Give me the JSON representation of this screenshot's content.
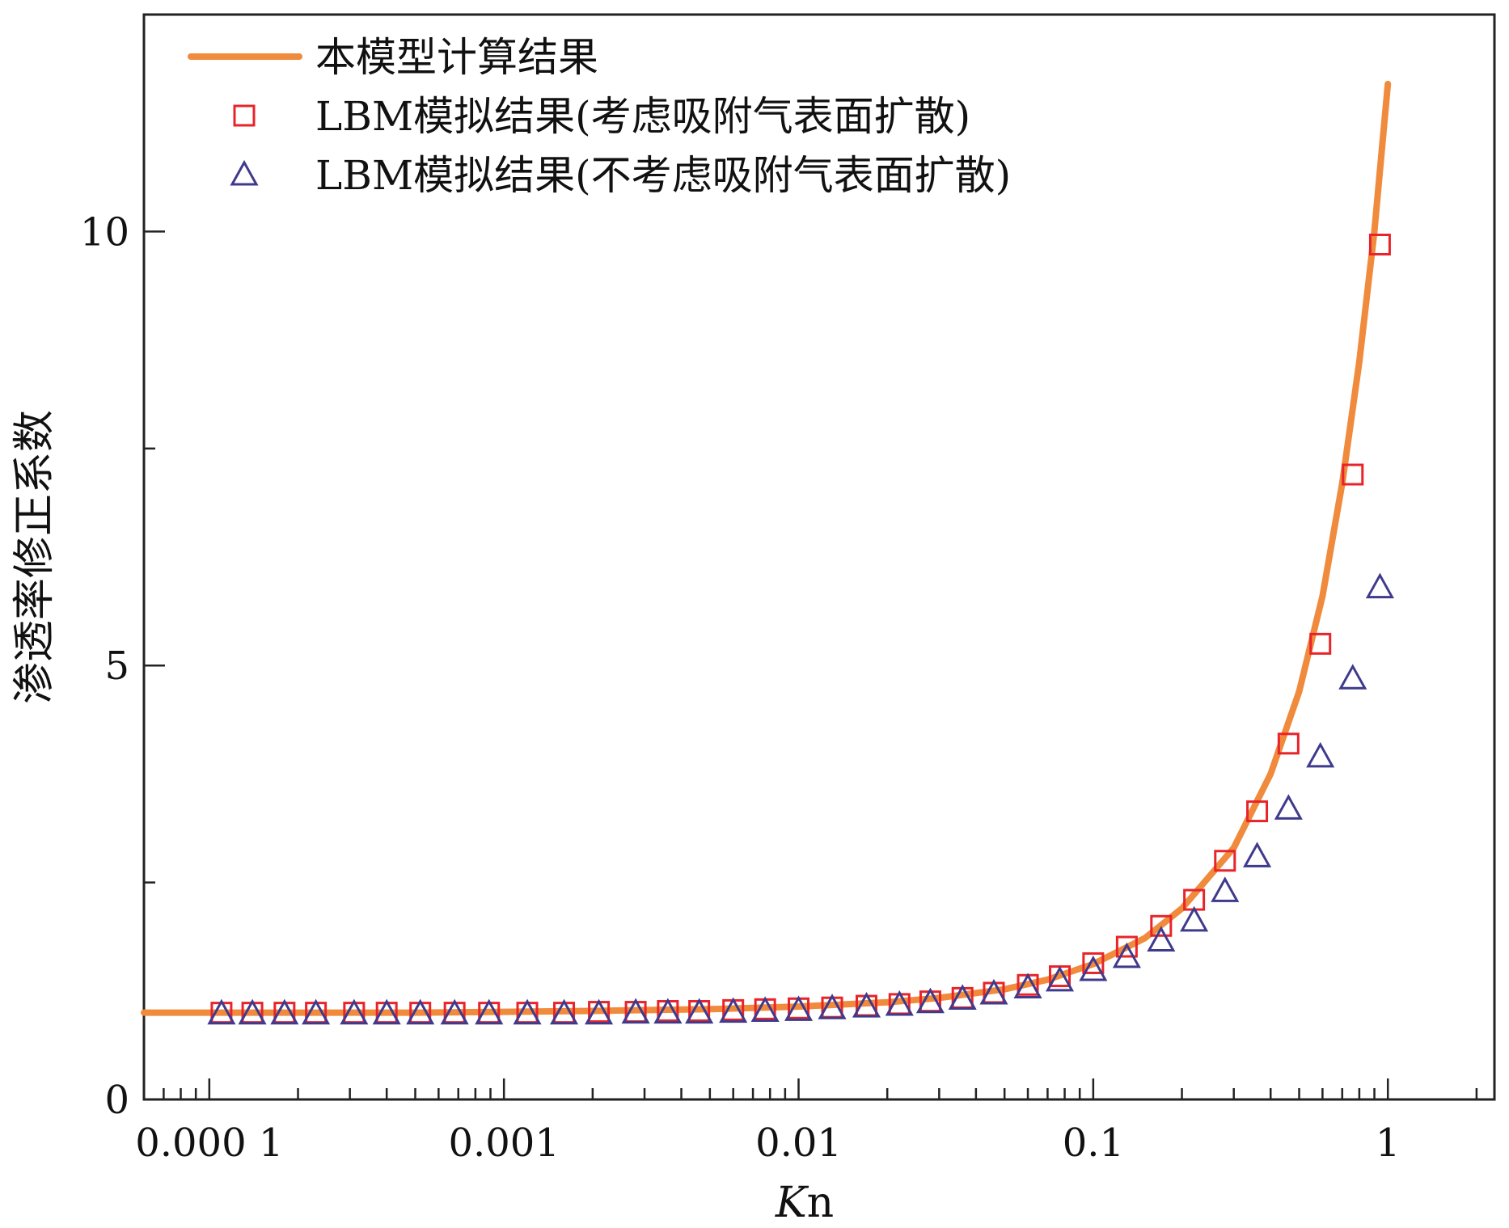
{
  "chart_data": {
    "type": "scatter",
    "xlabel_italic": "K",
    "xlabel_rest": "n",
    "ylabel": "渗透率修正系数",
    "xscale": "log",
    "xlim": [
      6e-05,
      2.3
    ],
    "ylim": [
      0,
      12.5
    ],
    "x_ticks": [
      {
        "value": 0.0001,
        "label": "0.000 1"
      },
      {
        "value": 0.001,
        "label": "0.001"
      },
      {
        "value": 0.01,
        "label": "0.01"
      },
      {
        "value": 0.1,
        "label": "0.1"
      },
      {
        "value": 1,
        "label": "1"
      }
    ],
    "y_ticks": [
      {
        "value": 0,
        "label": "0"
      },
      {
        "value": 5,
        "label": "5"
      },
      {
        "value": 10,
        "label": "10"
      }
    ],
    "y_minor_ticks": [
      2.5,
      7.5
    ],
    "grid": false,
    "legend_position": "top-left",
    "series": [
      {
        "name": "本模型计算结果",
        "kind": "line",
        "color": "#F08A3C",
        "x": [
          6e-05,
          0.0001,
          0.0002,
          0.0005,
          0.001,
          0.002,
          0.005,
          0.01,
          0.02,
          0.03,
          0.05,
          0.07,
          0.1,
          0.15,
          0.2,
          0.3,
          0.4,
          0.5,
          0.6,
          0.7,
          0.8,
          0.9,
          1.0
        ],
        "y": [
          1.0,
          1.0,
          1.0,
          1.0,
          1.01,
          1.02,
          1.04,
          1.07,
          1.12,
          1.17,
          1.27,
          1.38,
          1.56,
          1.86,
          2.2,
          2.9,
          3.75,
          4.7,
          5.8,
          7.1,
          8.5,
          10.0,
          11.7
        ]
      },
      {
        "name": "LBM模拟结果(考虑吸附气表面扩散)",
        "kind": "marker",
        "marker": "square",
        "color": "#E8242A",
        "x": [
          0.00011,
          0.00014,
          0.00018,
          0.00023,
          0.00031,
          0.0004,
          0.00052,
          0.00068,
          0.00089,
          0.0012,
          0.0016,
          0.0021,
          0.0028,
          0.0036,
          0.0046,
          0.006,
          0.0077,
          0.01,
          0.013,
          0.017,
          0.022,
          0.028,
          0.036,
          0.046,
          0.06,
          0.077,
          0.1,
          0.13,
          0.17,
          0.22,
          0.28,
          0.36,
          0.46,
          0.59,
          0.76,
          0.94
        ],
        "y": [
          1.0,
          1.0,
          1.0,
          1.0,
          1.0,
          1.0,
          1.0,
          1.0,
          1.0,
          1.0,
          1.0,
          1.01,
          1.01,
          1.02,
          1.02,
          1.03,
          1.04,
          1.05,
          1.06,
          1.08,
          1.1,
          1.13,
          1.17,
          1.23,
          1.32,
          1.42,
          1.57,
          1.76,
          2.0,
          2.3,
          2.75,
          3.32,
          4.1,
          5.25,
          7.2,
          9.85
        ]
      },
      {
        "name": "LBM模拟结果(不考虑吸附气表面扩散)",
        "kind": "marker",
        "marker": "triangle",
        "color": "#3F3A8C",
        "x": [
          0.00011,
          0.00014,
          0.00018,
          0.00023,
          0.00031,
          0.0004,
          0.00052,
          0.00068,
          0.00089,
          0.0012,
          0.0016,
          0.0021,
          0.0028,
          0.0036,
          0.0046,
          0.006,
          0.0077,
          0.01,
          0.013,
          0.017,
          0.022,
          0.028,
          0.036,
          0.046,
          0.06,
          0.077,
          0.1,
          0.13,
          0.17,
          0.22,
          0.28,
          0.36,
          0.46,
          0.59,
          0.76,
          0.94
        ],
        "y": [
          0.99,
          0.99,
          0.99,
          0.99,
          0.99,
          0.99,
          0.99,
          0.99,
          0.99,
          0.99,
          0.99,
          0.99,
          1.0,
          1.0,
          1.0,
          1.01,
          1.02,
          1.03,
          1.05,
          1.07,
          1.09,
          1.12,
          1.16,
          1.22,
          1.29,
          1.37,
          1.49,
          1.64,
          1.83,
          2.06,
          2.4,
          2.8,
          3.35,
          3.95,
          4.85,
          5.9
        ]
      }
    ]
  }
}
